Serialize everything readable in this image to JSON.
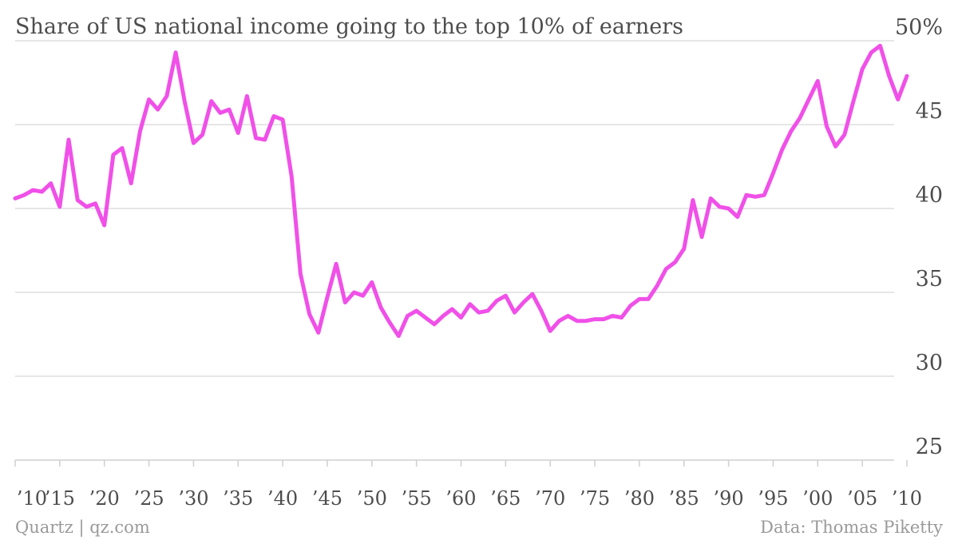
{
  "chart_data": {
    "type": "line",
    "title": "Share of US national income going to the top 10% of earners",
    "ylim": [
      25,
      50
    ],
    "yticks": [
      {
        "value": 50,
        "label": "50%"
      },
      {
        "value": 45,
        "label": "45"
      },
      {
        "value": 40,
        "label": "40"
      },
      {
        "value": 35,
        "label": "35"
      },
      {
        "value": 30,
        "label": "30"
      },
      {
        "value": 25,
        "label": "25"
      }
    ],
    "xlim": [
      1910,
      2010
    ],
    "xticks": [
      {
        "value": 1910,
        "label": "’10"
      },
      {
        "value": 1915,
        "label": "’15"
      },
      {
        "value": 1920,
        "label": "’20"
      },
      {
        "value": 1925,
        "label": "’25"
      },
      {
        "value": 1930,
        "label": "’30"
      },
      {
        "value": 1935,
        "label": "’35"
      },
      {
        "value": 1940,
        "label": "’40"
      },
      {
        "value": 1945,
        "label": "’45"
      },
      {
        "value": 1950,
        "label": "’50"
      },
      {
        "value": 1955,
        "label": "’55"
      },
      {
        "value": 1960,
        "label": "’60"
      },
      {
        "value": 1965,
        "label": "’65"
      },
      {
        "value": 1970,
        "label": "’70"
      },
      {
        "value": 1975,
        "label": "’75"
      },
      {
        "value": 1980,
        "label": "’80"
      },
      {
        "value": 1985,
        "label": "’85"
      },
      {
        "value": 1990,
        "label": "’90"
      },
      {
        "value": 1995,
        "label": "’95"
      },
      {
        "value": 2000,
        "label": "’00"
      },
      {
        "value": 2005,
        "label": "’05"
      },
      {
        "value": 2010,
        "label": "’10"
      }
    ],
    "grid": true,
    "series": [
      {
        "color": "#f050e8",
        "x": [
          1910,
          1911,
          1912,
          1913,
          1914,
          1915,
          1916,
          1917,
          1918,
          1919,
          1920,
          1921,
          1922,
          1923,
          1924,
          1925,
          1926,
          1927,
          1928,
          1929,
          1930,
          1931,
          1932,
          1933,
          1934,
          1935,
          1936,
          1937,
          1938,
          1939,
          1940,
          1941,
          1942,
          1943,
          1944,
          1945,
          1946,
          1947,
          1948,
          1949,
          1950,
          1951,
          1952,
          1953,
          1954,
          1955,
          1956,
          1957,
          1958,
          1959,
          1960,
          1961,
          1962,
          1963,
          1964,
          1965,
          1966,
          1967,
          1968,
          1969,
          1970,
          1971,
          1972,
          1973,
          1974,
          1975,
          1976,
          1977,
          1978,
          1979,
          1980,
          1981,
          1982,
          1983,
          1984,
          1985,
          1986,
          1987,
          1988,
          1989,
          1990,
          1991,
          1992,
          1993,
          1994,
          1995,
          1996,
          1997,
          1998,
          1999,
          2000,
          2001,
          2002,
          2003,
          2004,
          2005,
          2006,
          2007,
          2008,
          2009,
          2010
        ],
        "values": [
          40.6,
          40.8,
          41.1,
          41.0,
          41.5,
          40.1,
          44.1,
          40.5,
          40.1,
          40.3,
          39.0,
          43.2,
          43.6,
          41.5,
          44.6,
          46.5,
          45.9,
          46.7,
          49.3,
          46.4,
          43.9,
          44.4,
          46.4,
          45.7,
          45.9,
          44.5,
          46.7,
          44.2,
          44.1,
          45.5,
          45.3,
          41.9,
          36.1,
          33.7,
          32.6,
          34.7,
          36.7,
          34.4,
          35.0,
          34.8,
          35.6,
          34.1,
          33.2,
          32.4,
          33.6,
          33.9,
          33.5,
          33.1,
          33.6,
          34.0,
          33.5,
          34.3,
          33.8,
          33.9,
          34.5,
          34.8,
          33.8,
          34.4,
          34.9,
          33.9,
          32.7,
          33.3,
          33.6,
          33.3,
          33.3,
          33.4,
          33.4,
          33.6,
          33.5,
          34.2,
          34.6,
          34.6,
          35.4,
          36.4,
          36.8,
          37.6,
          40.5,
          38.3,
          40.6,
          40.1,
          40.0,
          39.5,
          40.8,
          40.7,
          40.8,
          42.1,
          43.5,
          44.6,
          45.4,
          46.5,
          47.6,
          44.9,
          43.7,
          44.4,
          46.4,
          48.3,
          49.3,
          49.7,
          47.9,
          46.5,
          47.9
        ]
      }
    ]
  },
  "footer": {
    "source_left": "Quartz | qz.com",
    "source_right": "Data: Thomas Piketty"
  }
}
